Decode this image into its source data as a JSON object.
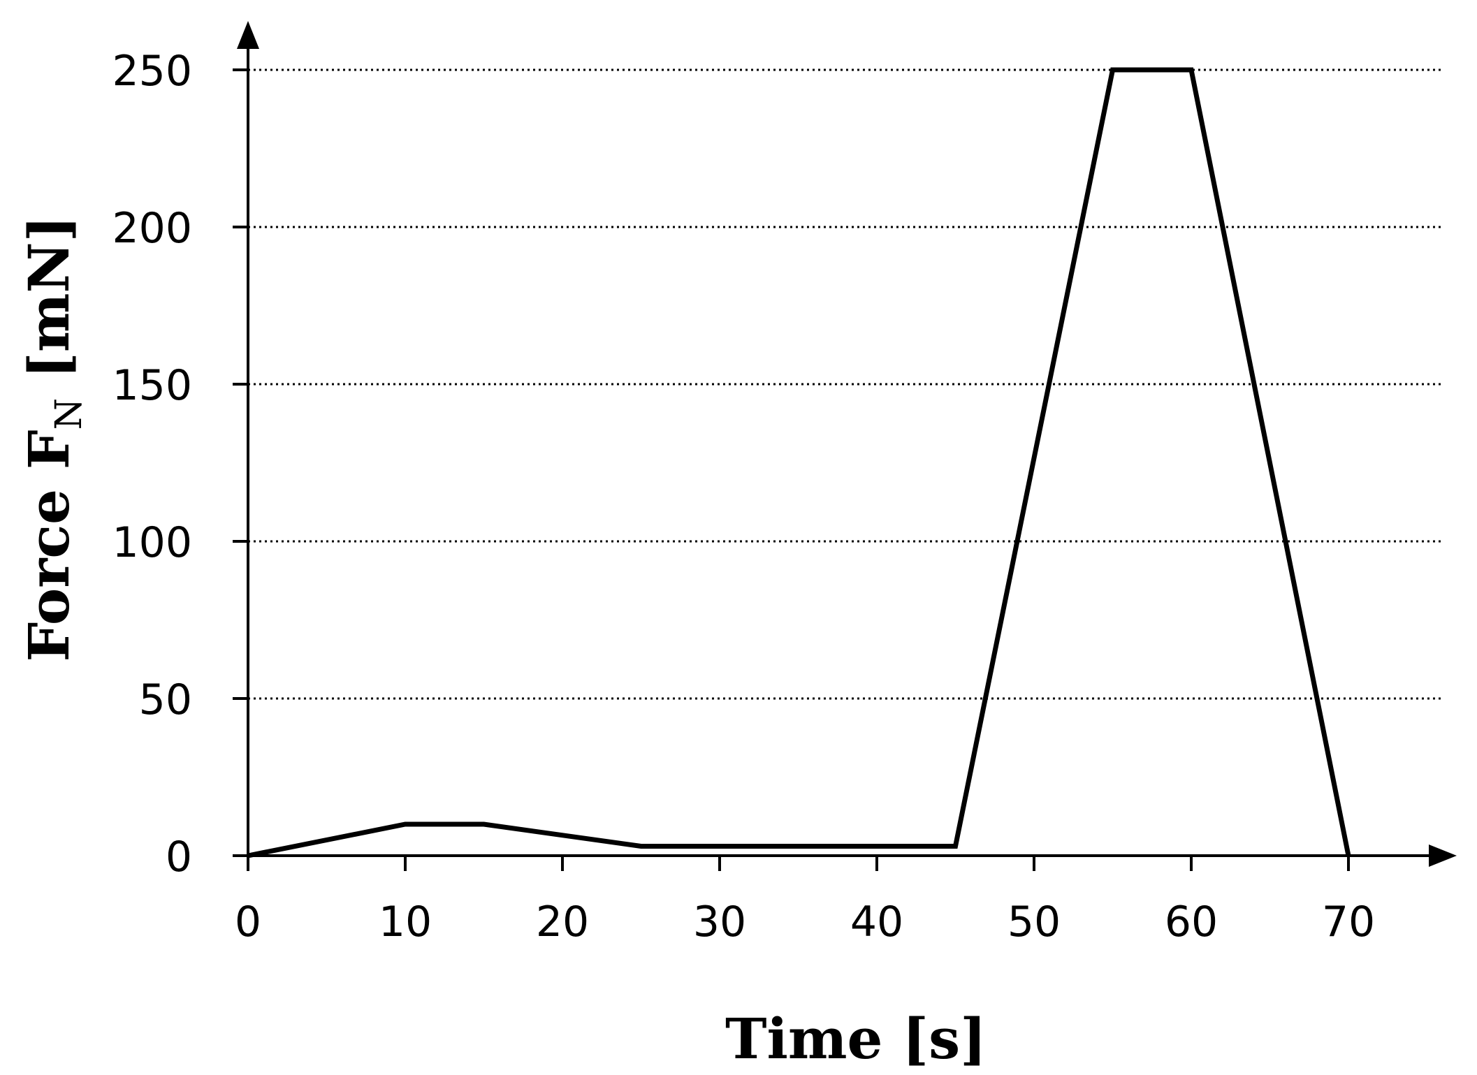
{
  "chart_data": {
    "type": "line",
    "xlabel": "Time [s]",
    "ylabel_main": "Force F",
    "ylabel_sub": "N",
    "ylabel_unit": " [mN]",
    "xlim": [
      0,
      75
    ],
    "ylim": [
      0,
      250
    ],
    "x_ticks": [
      0,
      10,
      20,
      30,
      40,
      50,
      60,
      70
    ],
    "y_ticks": [
      0,
      50,
      100,
      150,
      200,
      250
    ],
    "grid": "horizontal-dotted",
    "legend": "none",
    "colors": {
      "line": "#000000",
      "background": "#ffffff"
    },
    "series": [
      {
        "x": [
          0,
          10,
          15,
          25,
          45,
          55,
          60,
          70
        ],
        "y": [
          0,
          10,
          10,
          3,
          3,
          250,
          250,
          0
        ]
      }
    ]
  }
}
